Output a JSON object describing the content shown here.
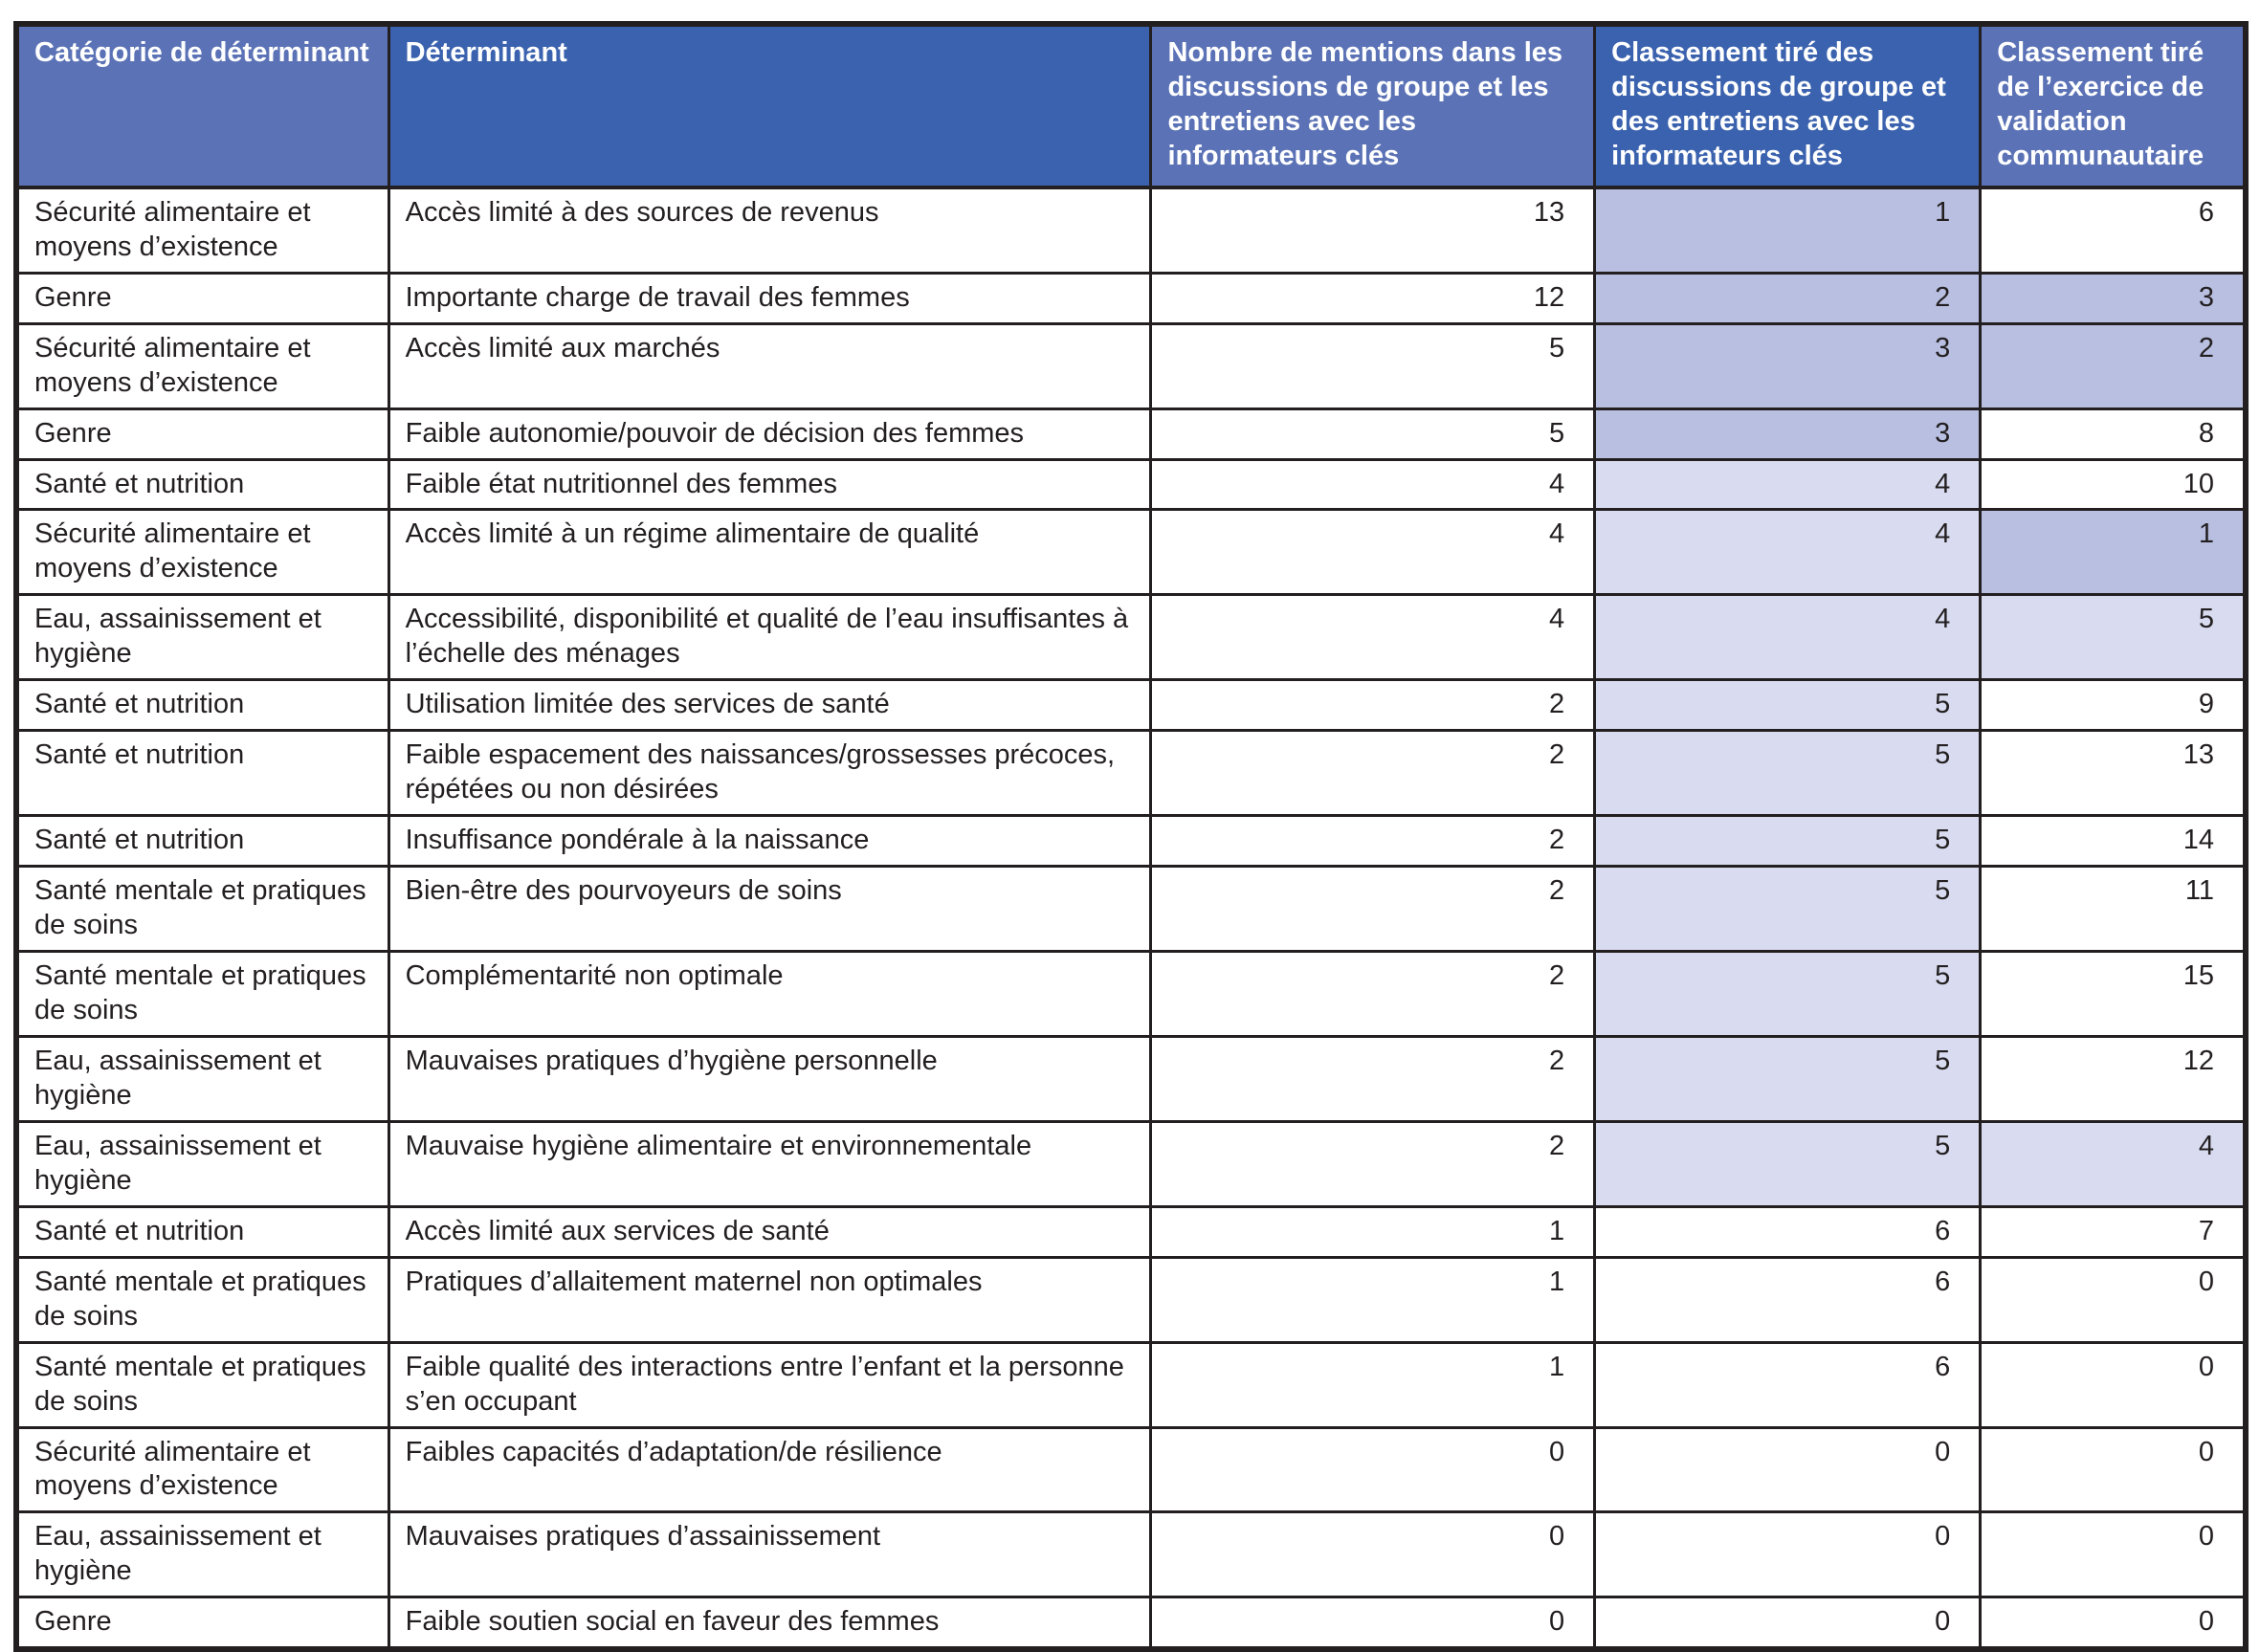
{
  "colors": {
    "header_light_blue": "#5b73b6",
    "header_dark_blue": "#3b62ae",
    "highlight_medium": "#b8bfe1",
    "highlight_light": "#d9dcf0",
    "border_black": "#231f20",
    "header_text": "#ffffff",
    "body_text": "#231f20"
  },
  "table": {
    "columns": [
      {
        "id": "category",
        "label": "Catégorie de déterminant",
        "tone": "light",
        "align": "left"
      },
      {
        "id": "determinant",
        "label": "Déterminant",
        "tone": "dark",
        "align": "left"
      },
      {
        "id": "mentions",
        "label": "Nombre de mentions dans les discussions de groupe et les entretiens avec les informateurs clés",
        "tone": "light",
        "align": "right"
      },
      {
        "id": "rank_group",
        "label": "Classement tiré des discussions de groupe et des entretiens avec les informateurs clés",
        "tone": "dark",
        "align": "right"
      },
      {
        "id": "rank_validation",
        "label": "Classement tiré de l’exercice de validation communautaire",
        "tone": "light",
        "align": "right"
      }
    ],
    "rows": [
      {
        "category": "Sécurité alimentaire et moyens d’existence",
        "determinant": "Accès limité à des sources de revenus",
        "mentions": 13,
        "rank_group": 1,
        "rank_group_shade": "medium",
        "rank_validation": 6,
        "rank_validation_shade": "none"
      },
      {
        "category": "Genre",
        "determinant": "Importante charge de travail des femmes",
        "mentions": 12,
        "rank_group": 2,
        "rank_group_shade": "medium",
        "rank_validation": 3,
        "rank_validation_shade": "medium"
      },
      {
        "category": "Sécurité alimentaire et moyens d’existence",
        "determinant": "Accès limité aux marchés",
        "mentions": 5,
        "rank_group": 3,
        "rank_group_shade": "medium",
        "rank_validation": 2,
        "rank_validation_shade": "medium"
      },
      {
        "category": "Genre",
        "determinant": "Faible autonomie/pouvoir de décision des femmes",
        "mentions": 5,
        "rank_group": 3,
        "rank_group_shade": "medium",
        "rank_validation": 8,
        "rank_validation_shade": "none"
      },
      {
        "category": "Santé et nutrition",
        "determinant": "Faible état nutritionnel des femmes",
        "mentions": 4,
        "rank_group": 4,
        "rank_group_shade": "light",
        "rank_validation": 10,
        "rank_validation_shade": "none"
      },
      {
        "category": "Sécurité alimentaire et moyens d’existence",
        "determinant": "Accès limité à un régime alimentaire de qualité",
        "mentions": 4,
        "rank_group": 4,
        "rank_group_shade": "light",
        "rank_validation": 1,
        "rank_validation_shade": "medium"
      },
      {
        "category": "Eau, assainissement et hygiène",
        "determinant": "Accessibilité, disponibilité et qualité de l’eau insuffisantes à l’échelle des ménages",
        "mentions": 4,
        "rank_group": 4,
        "rank_group_shade": "light",
        "rank_validation": 5,
        "rank_validation_shade": "light"
      },
      {
        "category": "Santé et nutrition",
        "determinant": "Utilisation limitée des services de santé",
        "mentions": 2,
        "rank_group": 5,
        "rank_group_shade": "light",
        "rank_validation": 9,
        "rank_validation_shade": "none"
      },
      {
        "category": "Santé et nutrition",
        "determinant": "Faible espacement des naissances/grossesses précoces, répétées ou non désirées",
        "mentions": 2,
        "rank_group": 5,
        "rank_group_shade": "light",
        "rank_validation": 13,
        "rank_validation_shade": "none"
      },
      {
        "category": "Santé et nutrition",
        "determinant": "Insuffisance pondérale à la naissance",
        "mentions": 2,
        "rank_group": 5,
        "rank_group_shade": "light",
        "rank_validation": 14,
        "rank_validation_shade": "none"
      },
      {
        "category": "Santé mentale et pratiques de soins",
        "determinant": "Bien-être des pourvoyeurs de soins",
        "mentions": 2,
        "rank_group": 5,
        "rank_group_shade": "light",
        "rank_validation": 11,
        "rank_validation_shade": "none"
      },
      {
        "category": "Santé mentale et pratiques de soins",
        "determinant": "Complémentarité non optimale",
        "mentions": 2,
        "rank_group": 5,
        "rank_group_shade": "light",
        "rank_validation": 15,
        "rank_validation_shade": "none"
      },
      {
        "category": "Eau, assainissement et hygiène",
        "determinant": "Mauvaises pratiques d’hygiène personnelle",
        "mentions": 2,
        "rank_group": 5,
        "rank_group_shade": "light",
        "rank_validation": 12,
        "rank_validation_shade": "none"
      },
      {
        "category": "Eau, assainissement et hygiène",
        "determinant": "Mauvaise hygiène alimentaire et environnementale",
        "mentions": 2,
        "rank_group": 5,
        "rank_group_shade": "light",
        "rank_validation": 4,
        "rank_validation_shade": "light"
      },
      {
        "category": "Santé et nutrition",
        "determinant": "Accès limité aux services de santé",
        "mentions": 1,
        "rank_group": 6,
        "rank_group_shade": "none",
        "rank_validation": 7,
        "rank_validation_shade": "none"
      },
      {
        "category": "Santé mentale et pratiques de soins",
        "determinant": "Pratiques d’allaitement maternel non optimales",
        "mentions": 1,
        "rank_group": 6,
        "rank_group_shade": "none",
        "rank_validation": 0,
        "rank_validation_shade": "none"
      },
      {
        "category": "Santé mentale et pratiques de soins",
        "determinant": "Faible qualité des interactions entre l’enfant et la personne s’en occupant",
        "mentions": 1,
        "rank_group": 6,
        "rank_group_shade": "none",
        "rank_validation": 0,
        "rank_validation_shade": "none"
      },
      {
        "category": "Sécurité alimentaire et moyens d’existence",
        "determinant": "Faibles capacités d’adaptation/de résilience",
        "mentions": 0,
        "rank_group": 0,
        "rank_group_shade": "none",
        "rank_validation": 0,
        "rank_validation_shade": "none"
      },
      {
        "category": "Eau, assainissement et hygiène",
        "determinant": "Mauvaises pratiques d’assainissement",
        "mentions": 0,
        "rank_group": 0,
        "rank_group_shade": "none",
        "rank_validation": 0,
        "rank_validation_shade": "none"
      },
      {
        "category": "Genre",
        "determinant": "Faible soutien social en faveur des femmes",
        "mentions": 0,
        "rank_group": 0,
        "rank_group_shade": "none",
        "rank_validation": 0,
        "rank_validation_shade": "none"
      }
    ]
  }
}
